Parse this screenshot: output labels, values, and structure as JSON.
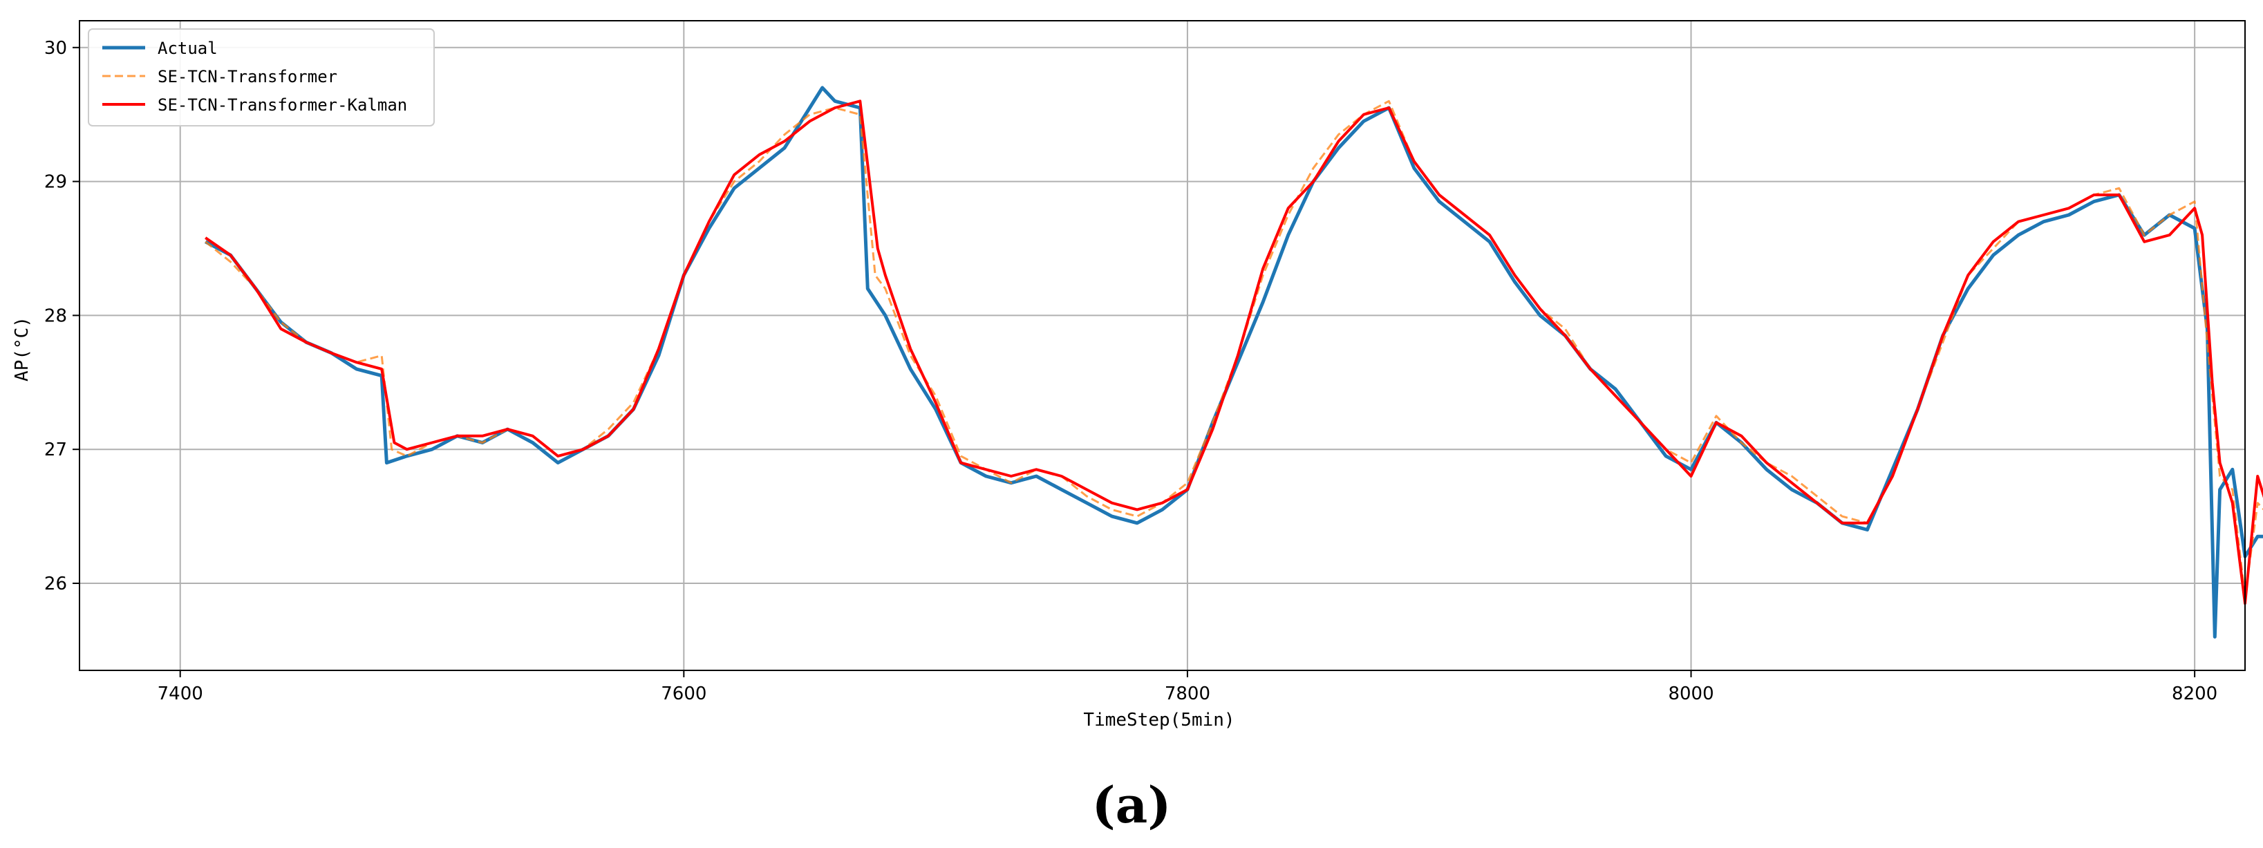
{
  "chart_data": {
    "type": "line",
    "caption": "(a)",
    "xlabel": "TimeStep(5min)",
    "ylabel": "AP(°C)",
    "xlim": [
      7360,
      8220
    ],
    "ylim": [
      25.35,
      30.2
    ],
    "xticks": [
      7400,
      7600,
      7800,
      8000,
      8200
    ],
    "yticks": [
      26,
      27,
      28,
      29,
      30
    ],
    "grid": true,
    "legend": "top-left",
    "colors": {
      "Actual": "#1f77b4",
      "SE-TCN-Transformer": "#ff7f0e",
      "SE-TCN-Transformer-Kalman": "#ff0000"
    },
    "series": [
      {
        "name": "Actual",
        "style": "solid",
        "x": [
          7410,
          7420,
          7430,
          7440,
          7450,
          7460,
          7470,
          7480,
          7482,
          7490,
          7500,
          7510,
          7520,
          7530,
          7540,
          7550,
          7560,
          7570,
          7580,
          7590,
          7600,
          7610,
          7620,
          7630,
          7640,
          7650,
          7655,
          7660,
          7670,
          7673,
          7680,
          7690,
          7700,
          7710,
          7720,
          7730,
          7740,
          7750,
          7760,
          7770,
          7780,
          7790,
          7800,
          7810,
          7820,
          7830,
          7840,
          7850,
          7860,
          7870,
          7880,
          7890,
          7900,
          7910,
          7920,
          7930,
          7940,
          7950,
          7960,
          7970,
          7980,
          7990,
          8000,
          8010,
          8020,
          8030,
          8040,
          8050,
          8060,
          8070,
          8080,
          8090,
          8100,
          8110,
          8120,
          8130,
          8140,
          8150,
          8160,
          8170,
          8180,
          8190,
          8200,
          8205,
          8208,
          8210,
          8215,
          8220,
          8225,
          8230
        ],
        "values": [
          28.55,
          28.45,
          28.2,
          27.95,
          27.8,
          27.72,
          27.6,
          27.55,
          26.9,
          26.95,
          27.0,
          27.1,
          27.05,
          27.15,
          27.05,
          26.9,
          27.0,
          27.1,
          27.3,
          27.7,
          28.3,
          28.65,
          28.95,
          29.1,
          29.25,
          29.55,
          29.7,
          29.6,
          29.55,
          28.2,
          28.0,
          27.6,
          27.3,
          26.9,
          26.8,
          26.75,
          26.8,
          26.7,
          26.6,
          26.5,
          26.45,
          26.55,
          26.7,
          27.2,
          27.65,
          28.1,
          28.6,
          29.0,
          29.25,
          29.45,
          29.55,
          29.1,
          28.85,
          28.7,
          28.55,
          28.25,
          28.0,
          27.85,
          27.6,
          27.45,
          27.2,
          26.95,
          26.85,
          27.2,
          27.05,
          26.85,
          26.7,
          26.6,
          26.45,
          26.4,
          26.85,
          27.3,
          27.85,
          28.2,
          28.45,
          28.6,
          28.7,
          28.75,
          28.85,
          28.9,
          28.6,
          28.75,
          28.65,
          27.9,
          25.6,
          26.7,
          26.85,
          26.2,
          26.35,
          26.35
        ]
      },
      {
        "name": "SE-TCN-Transformer",
        "style": "dashed",
        "x": [
          7410,
          7420,
          7430,
          7440,
          7450,
          7460,
          7470,
          7480,
          7484,
          7490,
          7500,
          7510,
          7520,
          7530,
          7540,
          7550,
          7560,
          7570,
          7580,
          7590,
          7600,
          7610,
          7620,
          7630,
          7640,
          7650,
          7660,
          7670,
          7676,
          7680,
          7690,
          7700,
          7710,
          7720,
          7730,
          7740,
          7750,
          7760,
          7770,
          7780,
          7790,
          7800,
          7810,
          7820,
          7830,
          7840,
          7850,
          7860,
          7870,
          7880,
          7890,
          7900,
          7910,
          7920,
          7930,
          7940,
          7950,
          7960,
          7970,
          7980,
          7990,
          8000,
          8010,
          8020,
          8030,
          8040,
          8050,
          8060,
          8070,
          8080,
          8090,
          8100,
          8110,
          8120,
          8130,
          8140,
          8150,
          8160,
          8170,
          8180,
          8190,
          8200,
          8205,
          8210,
          8215,
          8220,
          8225,
          8230
        ],
        "values": [
          28.55,
          28.4,
          28.2,
          27.95,
          27.8,
          27.72,
          27.65,
          27.7,
          27.0,
          26.95,
          27.05,
          27.1,
          27.05,
          27.15,
          27.1,
          26.95,
          27.0,
          27.15,
          27.35,
          27.75,
          28.3,
          28.7,
          29.0,
          29.15,
          29.35,
          29.5,
          29.55,
          29.5,
          28.3,
          28.2,
          27.7,
          27.4,
          26.95,
          26.85,
          26.75,
          26.85,
          26.8,
          26.65,
          26.55,
          26.5,
          26.6,
          26.75,
          27.2,
          27.7,
          28.3,
          28.75,
          29.1,
          29.35,
          29.5,
          29.6,
          29.15,
          28.9,
          28.75,
          28.6,
          28.3,
          28.05,
          27.9,
          27.6,
          27.4,
          27.2,
          27.0,
          26.9,
          27.25,
          27.05,
          26.9,
          26.8,
          26.65,
          26.5,
          26.45,
          26.8,
          27.3,
          27.8,
          28.3,
          28.5,
          28.7,
          28.75,
          28.8,
          28.9,
          28.95,
          28.6,
          28.75,
          28.85,
          27.8,
          26.8,
          26.7,
          25.9,
          26.6,
          26.5
        ]
      },
      {
        "name": "SE-TCN-Transformer-Kalman",
        "style": "solid",
        "x": [
          7410,
          7420,
          7430,
          7440,
          7450,
          7460,
          7470,
          7480,
          7485,
          7490,
          7500,
          7510,
          7520,
          7530,
          7540,
          7550,
          7560,
          7570,
          7580,
          7590,
          7600,
          7610,
          7620,
          7630,
          7640,
          7650,
          7660,
          7670,
          7677,
          7680,
          7690,
          7700,
          7710,
          7720,
          7730,
          7740,
          7750,
          7760,
          7770,
          7780,
          7790,
          7800,
          7810,
          7820,
          7830,
          7840,
          7850,
          7860,
          7870,
          7880,
          7890,
          7900,
          7910,
          7920,
          7930,
          7940,
          7950,
          7960,
          7970,
          7980,
          7990,
          8000,
          8010,
          8020,
          8030,
          8040,
          8050,
          8060,
          8070,
          8080,
          8090,
          8100,
          8110,
          8120,
          8130,
          8140,
          8150,
          8160,
          8170,
          8180,
          8190,
          8200,
          8203,
          8207,
          8210,
          8215,
          8220,
          8225,
          8230
        ],
        "values": [
          28.58,
          28.45,
          28.2,
          27.9,
          27.8,
          27.72,
          27.65,
          27.6,
          27.05,
          27.0,
          27.05,
          27.1,
          27.1,
          27.15,
          27.1,
          26.95,
          27.0,
          27.1,
          27.3,
          27.75,
          28.3,
          28.7,
          29.05,
          29.2,
          29.3,
          29.45,
          29.55,
          29.6,
          28.5,
          28.3,
          27.75,
          27.35,
          26.9,
          26.85,
          26.8,
          26.85,
          26.8,
          26.7,
          26.6,
          26.55,
          26.6,
          26.7,
          27.15,
          27.7,
          28.35,
          28.8,
          29.0,
          29.3,
          29.5,
          29.55,
          29.15,
          28.9,
          28.75,
          28.6,
          28.3,
          28.05,
          27.85,
          27.6,
          27.4,
          27.2,
          27.0,
          26.8,
          27.2,
          27.1,
          26.9,
          26.75,
          26.6,
          26.45,
          26.45,
          26.8,
          27.3,
          27.85,
          28.3,
          28.55,
          28.7,
          28.75,
          28.8,
          28.9,
          28.9,
          28.55,
          28.6,
          28.8,
          28.6,
          27.5,
          26.9,
          26.6,
          25.85,
          26.8,
          26.5
        ]
      }
    ]
  }
}
